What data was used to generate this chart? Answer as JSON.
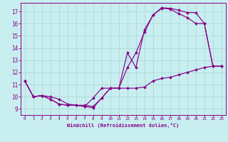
{
  "title": "",
  "xlabel": "Windchill (Refroidissement éolien,°C)",
  "ylabel": "",
  "bg_color": "#c8eef0",
  "grid_color": "#b0d8d8",
  "line_color": "#880088",
  "marker_color": "#880088",
  "xlim": [
    -0.5,
    23.5
  ],
  "ylim": [
    8.5,
    17.7
  ],
  "xticks": [
    0,
    1,
    2,
    3,
    4,
    5,
    6,
    7,
    8,
    9,
    10,
    11,
    12,
    13,
    14,
    15,
    16,
    17,
    18,
    19,
    20,
    21,
    22,
    23
  ],
  "yticks": [
    9,
    10,
    11,
    12,
    13,
    14,
    15,
    16,
    17
  ],
  "line1_x": [
    0,
    1,
    2,
    3,
    4,
    5,
    6,
    7,
    8,
    9,
    10,
    11,
    12,
    13,
    14,
    15,
    16,
    17,
    18,
    19,
    20,
    21,
    22,
    23
  ],
  "line1_y": [
    11.3,
    10.0,
    10.1,
    9.8,
    9.4,
    9.3,
    9.3,
    9.2,
    9.1,
    9.9,
    10.7,
    10.7,
    12.4,
    13.6,
    15.3,
    16.7,
    17.25,
    17.2,
    16.8,
    16.5,
    16.0,
    16.0,
    12.5,
    12.5
  ],
  "line2_x": [
    0,
    1,
    2,
    3,
    4,
    5,
    6,
    7,
    8,
    9,
    10,
    11,
    12,
    13,
    14,
    15,
    16,
    17,
    18,
    19,
    20,
    21,
    22,
    23
  ],
  "line2_y": [
    11.3,
    10.0,
    10.1,
    9.8,
    9.4,
    9.3,
    9.3,
    9.2,
    9.9,
    10.7,
    10.7,
    10.7,
    13.6,
    12.4,
    15.5,
    16.7,
    17.3,
    17.25,
    17.1,
    16.9,
    16.9,
    16.0,
    12.5,
    12.5
  ],
  "line3_x": [
    0,
    1,
    2,
    3,
    4,
    5,
    6,
    7,
    8,
    9,
    10,
    11,
    12,
    13,
    14,
    15,
    16,
    17,
    18,
    19,
    20,
    21,
    22,
    23
  ],
  "line3_y": [
    11.3,
    10.0,
    10.1,
    10.0,
    9.8,
    9.4,
    9.3,
    9.3,
    9.2,
    9.9,
    10.7,
    10.7,
    10.7,
    10.7,
    10.8,
    11.3,
    11.5,
    11.6,
    11.8,
    12.0,
    12.2,
    12.4,
    12.5,
    12.5
  ]
}
